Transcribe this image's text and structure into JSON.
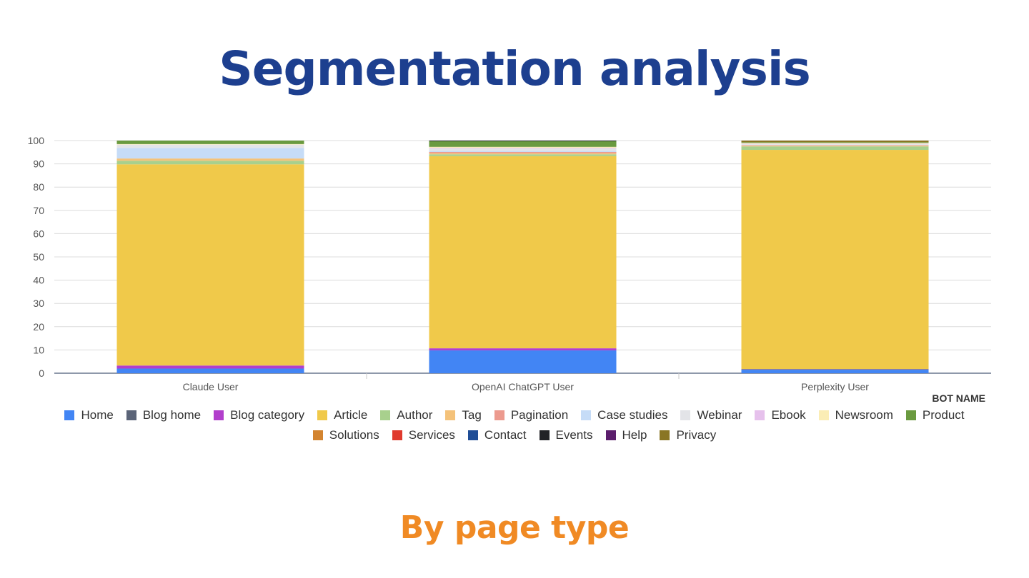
{
  "title": "Segmentation analysis",
  "subtitle": "By page type",
  "chart_data": {
    "type": "bar",
    "stacked": true,
    "categories": [
      "Claude User",
      "OpenAI ChatGPT User",
      "Perplexity User"
    ],
    "xlabel": "BOT NAME",
    "ylabel": "",
    "ylim": [
      0,
      100
    ],
    "yticks": [
      0,
      10,
      20,
      30,
      40,
      50,
      60,
      70,
      80,
      90,
      100
    ],
    "grid": true,
    "legend_position": "bottom",
    "series": [
      {
        "name": "Home",
        "color": "#4285f4",
        "values": [
          2.0,
          9.8,
          1.5
        ]
      },
      {
        "name": "Blog home",
        "color": "#5b6478",
        "values": [
          0,
          0,
          0.2
        ]
      },
      {
        "name": "Blog category",
        "color": "#b23fcc",
        "values": [
          1.3,
          0.9,
          0.1
        ]
      },
      {
        "name": "Article",
        "color": "#f0c94a",
        "values": [
          86.5,
          82.6,
          94.2
        ]
      },
      {
        "name": "Author",
        "color": "#a8d08d",
        "values": [
          1.5,
          0.8,
          1.5
        ]
      },
      {
        "name": "Tag",
        "color": "#f4c27a",
        "values": [
          1.0,
          0.5,
          0.3
        ]
      },
      {
        "name": "Pagination",
        "color": "#ec9a8e",
        "values": [
          0,
          0.5,
          0.2
        ]
      },
      {
        "name": "Case studies",
        "color": "#c6dcf7",
        "values": [
          4.5,
          0.5,
          0
        ]
      },
      {
        "name": "Webinar",
        "color": "#e3e4e8",
        "values": [
          1.5,
          1.0,
          0.5
        ]
      },
      {
        "name": "Ebook",
        "color": "#e6c1ec",
        "values": [
          0,
          0.3,
          0.2
        ]
      },
      {
        "name": "Newsroom",
        "color": "#fbedb5",
        "values": [
          0.2,
          0.4,
          0.3
        ]
      },
      {
        "name": "Product",
        "color": "#6a9a3f",
        "values": [
          1.5,
          2.4,
          0.3
        ]
      },
      {
        "name": "Solutions",
        "color": "#d3842f",
        "values": [
          0,
          0,
          0
        ]
      },
      {
        "name": "Services",
        "color": "#e03a2e",
        "values": [
          0,
          0,
          0
        ]
      },
      {
        "name": "Contact",
        "color": "#1f4d96",
        "values": [
          0,
          0,
          0
        ]
      },
      {
        "name": "Events",
        "color": "#222326",
        "values": [
          0,
          0.3,
          0
        ]
      },
      {
        "name": "Help",
        "color": "#5b1e6c",
        "values": [
          0,
          0,
          0
        ]
      },
      {
        "name": "Privacy",
        "color": "#8a7625",
        "values": [
          0,
          0,
          0.7
        ]
      }
    ]
  }
}
